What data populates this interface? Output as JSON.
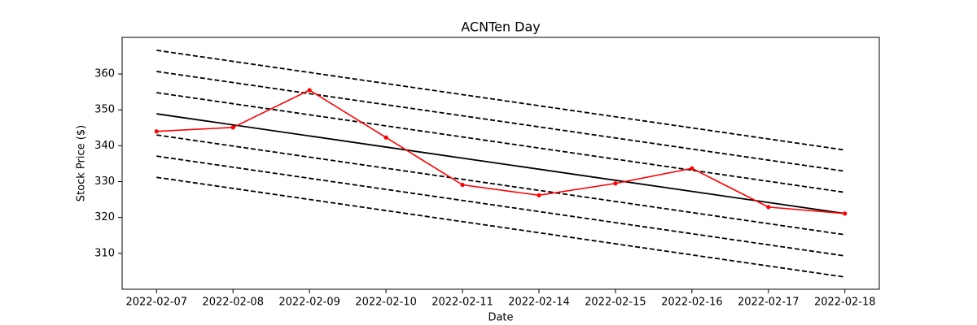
{
  "chart_data": {
    "type": "line",
    "title": "ACNTen Day",
    "xlabel": "Date",
    "ylabel": "Stock Price ($)",
    "categories": [
      "2022-02-07",
      "2022-02-08",
      "2022-02-09",
      "2022-02-10",
      "2022-02-11",
      "2022-02-14",
      "2022-02-15",
      "2022-02-16",
      "2022-02-17",
      "2022-02-18"
    ],
    "series": [
      {
        "color": "#ff0000",
        "values": [
          344.0,
          345.1,
          355.5,
          342.3,
          329.1,
          326.2,
          329.5,
          333.7,
          322.9,
          321.1
        ]
      }
    ],
    "trend_lines": [
      {
        "values": [
          348.9,
          321.1
        ],
        "style": "solid",
        "color": "#000000"
      },
      {
        "values": [
          366.6,
          338.8
        ],
        "style": "dashed",
        "color": "#000000"
      },
      {
        "values": [
          360.7,
          332.9
        ],
        "style": "dashed",
        "color": "#000000"
      },
      {
        "values": [
          354.8,
          327.0
        ],
        "style": "dashed",
        "color": "#000000"
      },
      {
        "values": [
          343.0,
          315.2
        ],
        "style": "dashed",
        "color": "#000000"
      },
      {
        "values": [
          337.1,
          309.3
        ],
        "style": "dashed",
        "color": "#000000"
      },
      {
        "values": [
          331.2,
          303.4
        ],
        "style": "dashed",
        "color": "#000000"
      }
    ],
    "ylim": [
      300,
      370.2
    ],
    "yticks": [
      310,
      320,
      330,
      340,
      350,
      360
    ],
    "grid": false
  }
}
